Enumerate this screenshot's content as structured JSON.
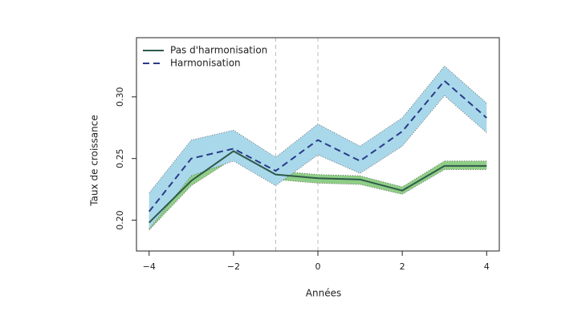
{
  "chart_data": {
    "type": "line",
    "x_label": "Années",
    "y_label": "Taux de croissance",
    "x": [
      -4,
      -3,
      -2,
      -1,
      0,
      1,
      2,
      3,
      4
    ],
    "series": [
      {
        "name": "Pas d'harmonisation",
        "color": "#2f5a4a",
        "band_color": "#8fce86",
        "dash": false,
        "values": [
          0.198,
          0.232,
          0.256,
          0.237,
          0.234,
          0.233,
          0.224,
          0.244,
          0.244
        ],
        "lower": [
          0.192,
          0.228,
          0.25,
          0.233,
          0.23,
          0.229,
          0.221,
          0.241,
          0.241
        ],
        "upper": [
          0.203,
          0.236,
          0.26,
          0.24,
          0.237,
          0.236,
          0.227,
          0.248,
          0.248
        ]
      },
      {
        "name": "Harmonisation",
        "color": "#2a3a88",
        "band_color": "#a8d8ea",
        "dash": true,
        "values": [
          0.207,
          0.25,
          0.258,
          0.24,
          0.265,
          0.248,
          0.272,
          0.313,
          0.283
        ],
        "lower": [
          0.193,
          0.236,
          0.248,
          0.228,
          0.253,
          0.238,
          0.26,
          0.301,
          0.271
        ],
        "upper": [
          0.222,
          0.265,
          0.273,
          0.251,
          0.278,
          0.26,
          0.283,
          0.325,
          0.295
        ]
      }
    ],
    "vlines": [
      -1,
      0
    ],
    "xlim": [
      -4.3,
      4.3
    ],
    "ylim": [
      0.175,
      0.348
    ],
    "xticks": [
      {
        "value": -4,
        "label": "−4"
      },
      {
        "value": -2,
        "label": "−2"
      },
      0,
      2,
      4
    ],
    "yticks": [
      {
        "value": 0.2,
        "label": "0.20"
      },
      0.25,
      {
        "value": 0.3,
        "label": "0.30"
      }
    ],
    "legend": "top-left"
  }
}
